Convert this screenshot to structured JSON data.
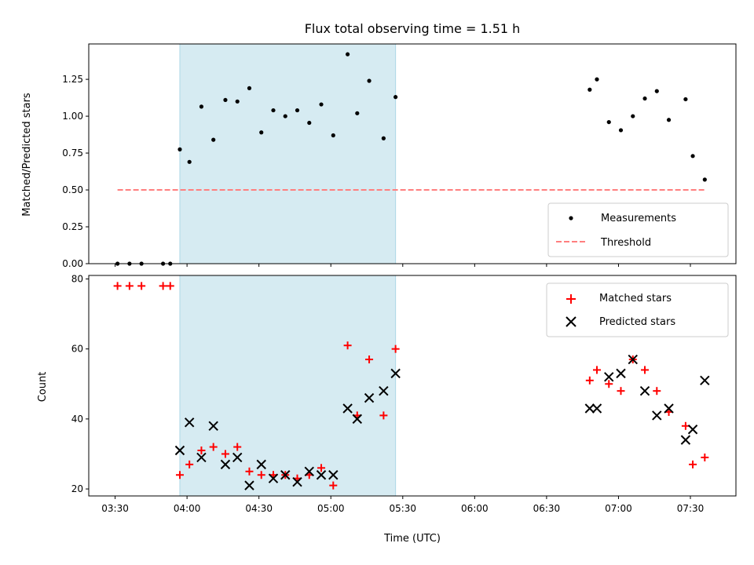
{
  "chart_data": [
    {
      "type": "scatter",
      "title": "Flux total observing time = 1.51 h",
      "ylabel": "Matched/Predicted stars",
      "xlabel": "",
      "ylim": [
        0,
        1.49
      ],
      "yticks": [
        0.0,
        0.25,
        0.5,
        0.75,
        1.0,
        1.25
      ],
      "ytick_labels": [
        "0.00",
        "0.25",
        "0.50",
        "0.75",
        "1.00",
        "1.25"
      ],
      "xlim": [
        "03:19",
        "07:49"
      ],
      "shaded_span": [
        "03:57",
        "05:27"
      ],
      "shade_color": "#add8e6",
      "legend_position": "lower-right",
      "series": [
        {
          "name": "Measurements",
          "marker": "dot",
          "color": "#000000",
          "points": [
            [
              "03:31",
              0.0
            ],
            [
              "03:36",
              0.0
            ],
            [
              "03:41",
              0.0
            ],
            [
              "03:50",
              0.0
            ],
            [
              "03:53",
              0.0
            ],
            [
              "03:57",
              0.775
            ],
            [
              "04:01",
              0.69
            ],
            [
              "04:06",
              1.065
            ],
            [
              "04:11",
              0.84
            ],
            [
              "04:16",
              1.11
            ],
            [
              "04:21",
              1.1
            ],
            [
              "04:26",
              1.19
            ],
            [
              "04:31",
              0.89
            ],
            [
              "04:36",
              1.04
            ],
            [
              "04:41",
              1.0
            ],
            [
              "04:46",
              1.04
            ],
            [
              "04:51",
              0.955
            ],
            [
              "04:56",
              1.08
            ],
            [
              "05:01",
              0.87
            ],
            [
              "05:07",
              1.42
            ],
            [
              "05:11",
              1.02
            ],
            [
              "05:16",
              1.24
            ],
            [
              "05:22",
              0.85
            ],
            [
              "05:27",
              1.13
            ],
            [
              "06:48",
              1.18
            ],
            [
              "06:51",
              1.25
            ],
            [
              "06:56",
              0.96
            ],
            [
              "07:01",
              0.905
            ],
            [
              "07:06",
              1.0
            ],
            [
              "07:11",
              1.12
            ],
            [
              "07:16",
              1.17
            ],
            [
              "07:21",
              0.975
            ],
            [
              "07:28",
              1.115
            ],
            [
              "07:31",
              0.73
            ],
            [
              "07:36",
              0.57
            ]
          ]
        },
        {
          "name": "Threshold",
          "marker": "dashed-line",
          "color": "#ff7f7f",
          "points": [
            [
              "03:31",
              0.5
            ],
            [
              "07:36",
              0.5
            ]
          ]
        }
      ]
    },
    {
      "type": "scatter",
      "title": "",
      "ylabel": "Count",
      "xlabel": "Time (UTC)",
      "ylim": [
        18,
        81
      ],
      "yticks": [
        20,
        40,
        60,
        80
      ],
      "ytick_labels": [
        "20",
        "40",
        "60",
        "80"
      ],
      "xticks": [
        "03:30",
        "04:00",
        "04:30",
        "05:00",
        "05:30",
        "06:00",
        "06:30",
        "07:00",
        "07:30"
      ],
      "xlim": [
        "03:19",
        "07:49"
      ],
      "shaded_span": [
        "03:57",
        "05:27"
      ],
      "shade_color": "#add8e6",
      "legend_position": "upper-right",
      "series": [
        {
          "name": "Matched stars",
          "marker": "plus",
          "color": "#ff0000",
          "points": [
            [
              "03:31",
              78
            ],
            [
              "03:36",
              78
            ],
            [
              "03:41",
              78
            ],
            [
              "03:50",
              78
            ],
            [
              "03:53",
              78
            ],
            [
              "03:57",
              24
            ],
            [
              "04:01",
              27
            ],
            [
              "04:06",
              31
            ],
            [
              "04:11",
              32
            ],
            [
              "04:16",
              30
            ],
            [
              "04:21",
              32
            ],
            [
              "04:26",
              25
            ],
            [
              "04:31",
              24
            ],
            [
              "04:36",
              24
            ],
            [
              "04:41",
              24
            ],
            [
              "04:46",
              23
            ],
            [
              "04:51",
              24
            ],
            [
              "04:56",
              26
            ],
            [
              "05:01",
              21
            ],
            [
              "05:07",
              61
            ],
            [
              "05:11",
              41
            ],
            [
              "05:16",
              57
            ],
            [
              "05:22",
              41
            ],
            [
              "05:27",
              60
            ],
            [
              "06:48",
              51
            ],
            [
              "06:51",
              54
            ],
            [
              "06:56",
              50
            ],
            [
              "07:01",
              48
            ],
            [
              "07:06",
              57
            ],
            [
              "07:11",
              54
            ],
            [
              "07:16",
              48
            ],
            [
              "07:21",
              42
            ],
            [
              "07:28",
              38
            ],
            [
              "07:31",
              27
            ],
            [
              "07:36",
              29
            ]
          ]
        },
        {
          "name": "Predicted stars",
          "marker": "x",
          "color": "#000000",
          "points": [
            [
              "03:57",
              31
            ],
            [
              "04:01",
              39
            ],
            [
              "04:06",
              29
            ],
            [
              "04:11",
              38
            ],
            [
              "04:16",
              27
            ],
            [
              "04:21",
              29
            ],
            [
              "04:26",
              21
            ],
            [
              "04:31",
              27
            ],
            [
              "04:36",
              23
            ],
            [
              "04:41",
              24
            ],
            [
              "04:46",
              22
            ],
            [
              "04:51",
              25
            ],
            [
              "04:56",
              24
            ],
            [
              "05:01",
              24
            ],
            [
              "05:07",
              43
            ],
            [
              "05:11",
              40
            ],
            [
              "05:16",
              46
            ],
            [
              "05:22",
              48
            ],
            [
              "05:27",
              53
            ],
            [
              "06:48",
              43
            ],
            [
              "06:51",
              43
            ],
            [
              "06:56",
              52
            ],
            [
              "07:01",
              53
            ],
            [
              "07:06",
              57
            ],
            [
              "07:11",
              48
            ],
            [
              "07:16",
              41
            ],
            [
              "07:21",
              43
            ],
            [
              "07:28",
              34
            ],
            [
              "07:31",
              37
            ],
            [
              "07:36",
              51
            ]
          ]
        }
      ]
    }
  ]
}
